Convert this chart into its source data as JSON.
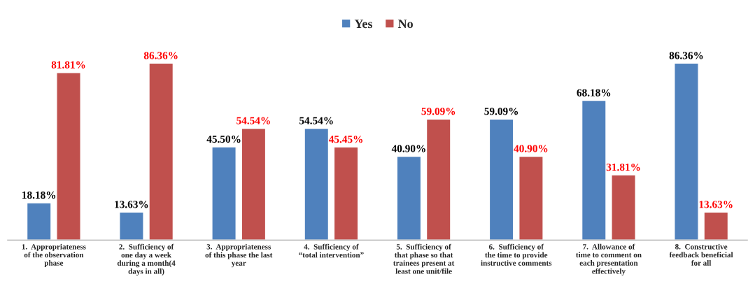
{
  "chart_data": {
    "type": "bar",
    "categories": [
      "1.  Appropriateness\nof the observation\nphase",
      "2.  Sufficiency of\none day a week\nduring a month(4\ndays in all)",
      "3.  Appropriateness\nof this phase the last\nyear",
      "4.  Sufficiency of\n“total intervention”",
      "5.  Sufficiency of\nthat phase so that\ntrainees present at\nleast one unit/file",
      "6.  Sufficiency of\nthe time to provide\ninstructive comments",
      "7.  Allowance of\ntime to comment on\neach presentation\neffectively",
      "8.  Constructive\nfeedback beneficial\nfor all"
    ],
    "series": [
      {
        "name": "Yes",
        "color": "#4f81bd",
        "values": [
          18.18,
          13.63,
          45.5,
          54.54,
          40.9,
          59.09,
          68.18,
          86.36
        ],
        "value_labels": [
          "18.18%",
          "13.63%",
          "45.50%",
          "54.54%",
          "40.90%",
          "59.09%",
          "68.18%",
          "86.36%"
        ]
      },
      {
        "name": "No",
        "color": "#c0504d",
        "values": [
          81.81,
          86.36,
          54.54,
          45.45,
          59.09,
          40.9,
          31.81,
          13.63
        ],
        "value_labels": [
          "81.81%",
          "86.36%",
          "54.54%",
          "45.45%",
          "59.09%",
          "40.90%",
          "31.81%",
          "13.63%"
        ]
      }
    ],
    "legend": "top",
    "grid": false
  }
}
